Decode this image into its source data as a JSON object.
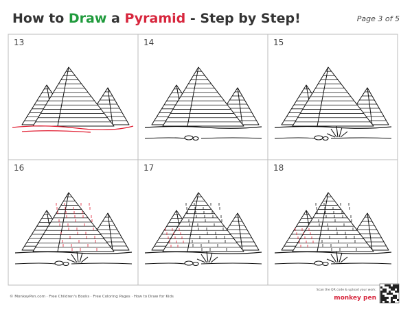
{
  "header": {
    "title_parts": [
      "How to",
      "Draw",
      "a",
      "Pyramid",
      "- Step by Step!"
    ],
    "page": "Page 3 of 5"
  },
  "steps": [
    {
      "number": "13"
    },
    {
      "number": "14"
    },
    {
      "number": "15"
    },
    {
      "number": "16"
    },
    {
      "number": "17"
    },
    {
      "number": "18"
    }
  ],
  "footer": {
    "credits": "© MonkeyPen.com · Free Children's Books · Free Coloring Pages · How to Draw for Kids",
    "scan": "Scan the QR code & upload your work.",
    "logo": "monkey pen"
  }
}
